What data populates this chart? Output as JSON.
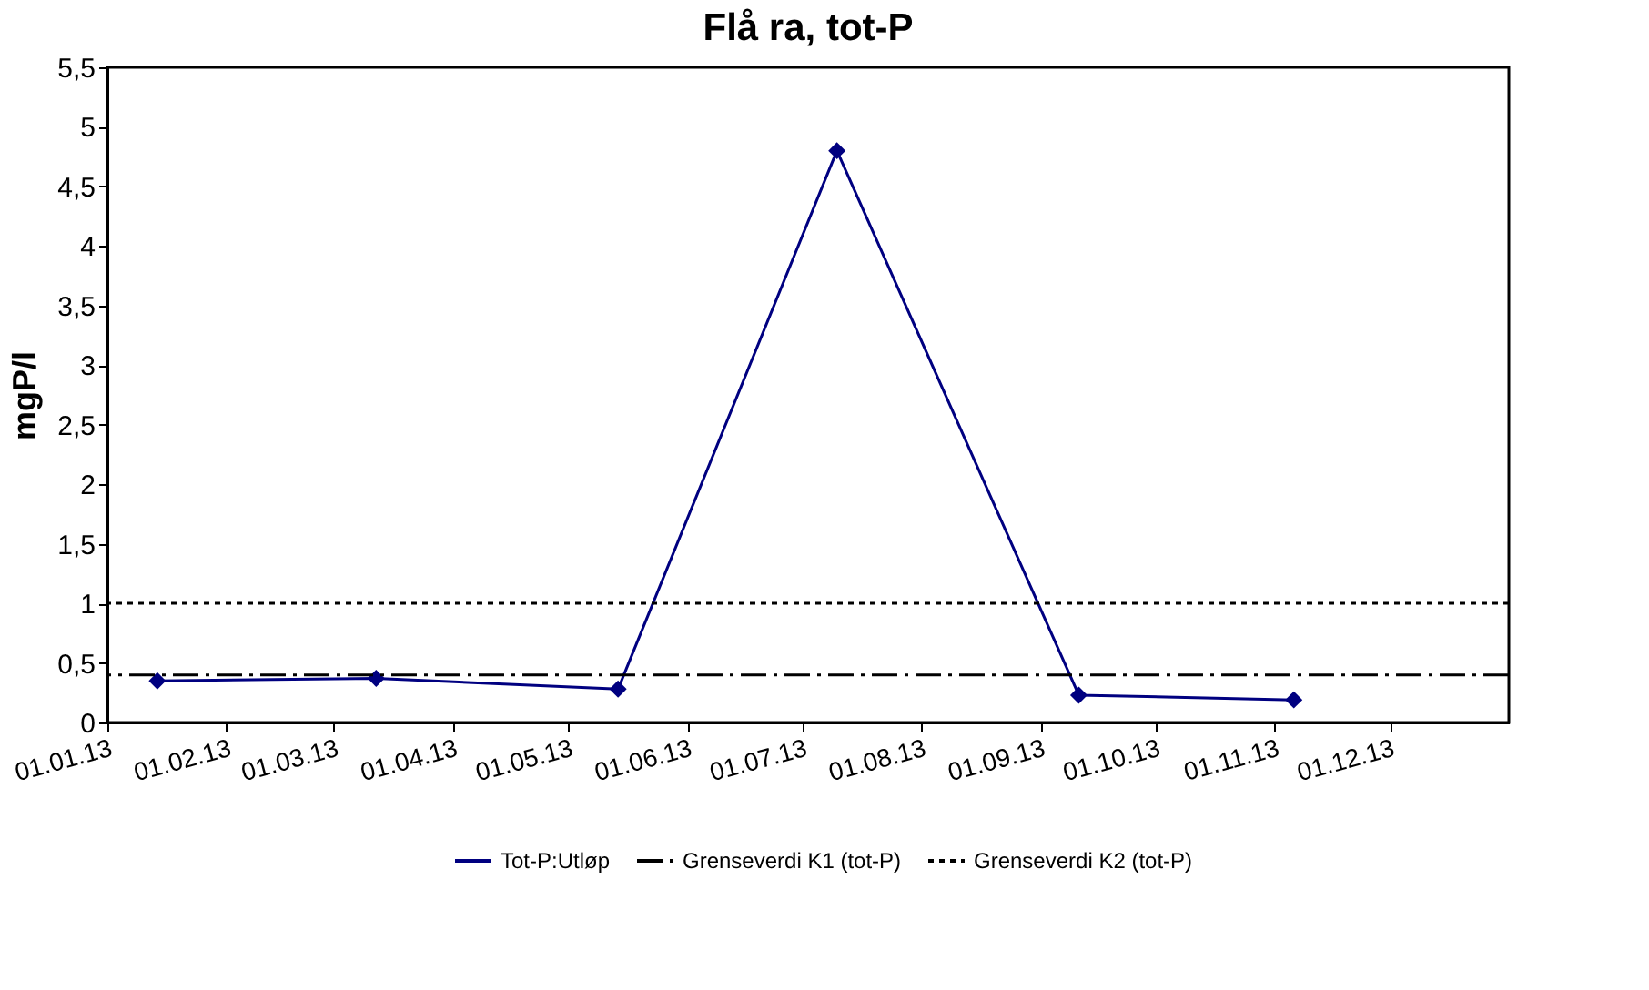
{
  "chart_data": {
    "type": "line",
    "title": "Flå ra, tot-P",
    "ylabel": "mgP/l",
    "x": [
      "2013-01-14",
      "2013-03-12",
      "2013-05-14",
      "2013-07-10",
      "2013-09-11",
      "2013-11-06"
    ],
    "series": [
      {
        "name": "Tot-P:Utløp",
        "color": "#000080",
        "values": [
          0.35,
          0.37,
          0.28,
          4.8,
          0.23,
          0.19
        ]
      }
    ],
    "ref_lines": [
      {
        "axis": "y",
        "value": 0.4,
        "label": "Grenseverdi K1 (tot-P)",
        "color": "#000000",
        "line_style": "dashed"
      },
      {
        "axis": "y",
        "value": 1,
        "label": "Grenseverdi K2 (tot-P)",
        "color": "#000000",
        "line_style": "dotted"
      }
    ],
    "xlim": [
      "2013-01-01",
      "2014-01-01"
    ],
    "xticks": [
      {
        "value": "2013-01-01",
        "label": "01.01.13"
      },
      {
        "value": "2013-02-01",
        "label": "01.02.13"
      },
      {
        "value": "2013-03-01",
        "label": "01.03.13"
      },
      {
        "value": "2013-04-01",
        "label": "01.04.13"
      },
      {
        "value": "2013-05-01",
        "label": "01.05.13"
      },
      {
        "value": "2013-06-01",
        "label": "01.06.13"
      },
      {
        "value": "2013-07-01",
        "label": "01.07.13"
      },
      {
        "value": "2013-08-01",
        "label": "01.08.13"
      },
      {
        "value": "2013-09-01",
        "label": "01.09.13"
      },
      {
        "value": "2013-10-01",
        "label": "01.10.13"
      },
      {
        "value": "2013-11-01",
        "label": "01.11.13"
      },
      {
        "value": "2013-12-01",
        "label": "01.12.13"
      }
    ],
    "ylim": [
      0,
      5.5
    ],
    "yticks": [
      {
        "value": 0,
        "label": "0"
      },
      {
        "value": 0.5,
        "label": "0,5"
      },
      {
        "value": 1,
        "label": "1"
      },
      {
        "value": 1.5,
        "label": "1,5"
      },
      {
        "value": 2,
        "label": "2"
      },
      {
        "value": 2.5,
        "label": "2,5"
      },
      {
        "value": 3,
        "label": "3"
      },
      {
        "value": 3.5,
        "label": "3,5"
      },
      {
        "value": 4,
        "label": "4"
      },
      {
        "value": 4.5,
        "label": "4,5"
      },
      {
        "value": 5,
        "label": "5"
      },
      {
        "value": 5.5,
        "label": "5,5"
      }
    ],
    "marker": "diamond",
    "line_style": "solid",
    "grid": false,
    "legend": "bottom"
  }
}
